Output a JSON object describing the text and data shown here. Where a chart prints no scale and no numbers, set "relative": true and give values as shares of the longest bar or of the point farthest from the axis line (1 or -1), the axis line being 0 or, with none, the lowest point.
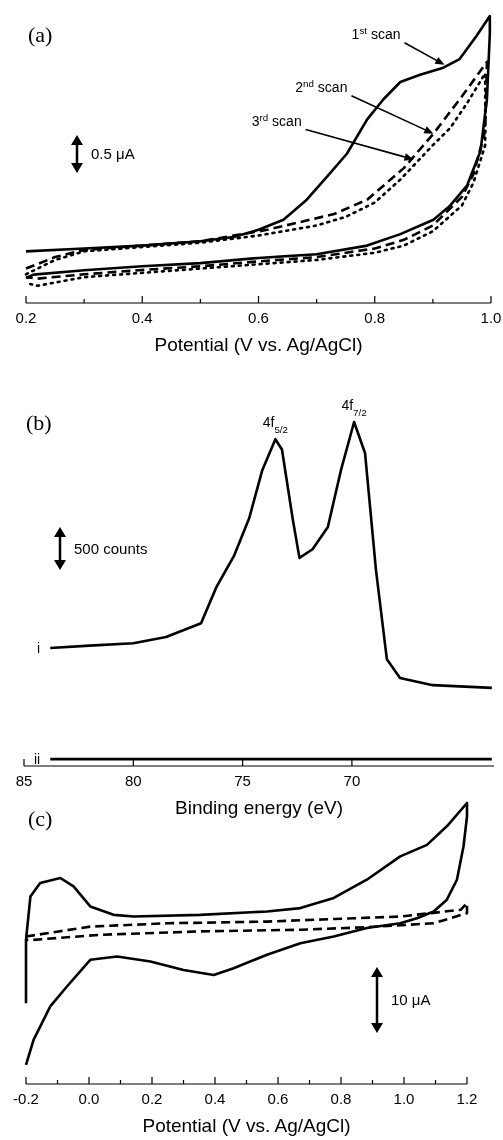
{
  "chart_data": [
    {
      "type": "line",
      "title": "(a)",
      "xlabel": "Potential (V vs. Ag/AgCl)",
      "relative": true,
      "xlim": [
        0.2,
        1.0
      ],
      "xticks": [
        0.2,
        {
          "value": 0.3,
          "label": null
        },
        0.4,
        {
          "value": 0.5,
          "label": null
        },
        0.6,
        {
          "value": 0.7,
          "label": null
        },
        0.8,
        {
          "value": 0.9,
          "label": null
        },
        {
          "value": 1,
          "label": "1.0"
        }
      ],
      "annotations": [
        "0.5 μA",
        {
          "text": "1$^{st}$ scan",
          "x": 0.92,
          "y": 0.83
        },
        {
          "text": "2$^{nd}$ scan",
          "x": 0.901,
          "y": 0.59
        },
        {
          "text": "3$^{rd}$ scan",
          "x": 0.867,
          "y": 0.5
        }
      ],
      "series": [
        {
          "color": "#000000",
          "line_style": "solid",
          "x": [
            0.2,
            0.3,
            0.4,
            0.5,
            0.557,
            0.6,
            0.643,
            0.683,
            0.718,
            0.752,
            0.787,
            0.815,
            0.844,
            0.878,
            0.918,
            0.946,
            0.975,
            0.998,
            0.998,
            0.993,
            0.982,
            0.959,
            0.93,
            0.901,
            0.844,
            0.787,
            0.7,
            0.6,
            0.5,
            0.4,
            0.3,
            0.213,
            0.2
          ],
          "values": [
            0.18,
            0.19,
            0.2,
            0.215,
            0.23,
            0.255,
            0.29,
            0.36,
            0.44,
            0.52,
            0.64,
            0.71,
            0.77,
            0.795,
            0.82,
            0.85,
            0.93,
            1,
            0.94,
            0.71,
            0.53,
            0.41,
            0.34,
            0.29,
            0.24,
            0.2,
            0.17,
            0.157,
            0.139,
            0.128,
            0.114,
            0.099,
            0.087
          ]
        },
        {
          "color": "#000000",
          "line_style": "dashed",
          "x": [
            0.2,
            0.25,
            0.3,
            0.4,
            0.5,
            0.615,
            0.73,
            0.787,
            0.85,
            0.901,
            0.95,
            0.993,
            0.99,
            0.97,
            0.95,
            0.9,
            0.85,
            0.8,
            0.7,
            0.6,
            0.5,
            0.4,
            0.3,
            0.22,
            0.2
          ],
          "values": [
            0.12,
            0.16,
            0.185,
            0.2,
            0.215,
            0.255,
            0.31,
            0.36,
            0.47,
            0.59,
            0.72,
            0.84,
            0.6,
            0.45,
            0.37,
            0.27,
            0.22,
            0.19,
            0.16,
            0.145,
            0.128,
            0.115,
            0.1,
            0.085,
            0.09
          ]
        },
        {
          "color": "#000000",
          "line_style": "dotted",
          "x": [
            0.2,
            0.25,
            0.3,
            0.4,
            0.5,
            0.6,
            0.7,
            0.75,
            0.8,
            0.844,
            0.9,
            0.93,
            0.96,
            0.99,
            0.99,
            0.97,
            0.95,
            0.9,
            0.85,
            0.8,
            0.7,
            0.6,
            0.5,
            0.4,
            0.3,
            0.22,
            0.2
          ],
          "values": [
            0.1,
            0.15,
            0.18,
            0.195,
            0.21,
            0.235,
            0.27,
            0.3,
            0.35,
            0.43,
            0.55,
            0.61,
            0.7,
            0.8,
            0.55,
            0.42,
            0.34,
            0.25,
            0.2,
            0.175,
            0.15,
            0.135,
            0.12,
            0.105,
            0.09,
            0.06,
            0.07
          ]
        }
      ]
    },
    {
      "type": "line",
      "title": "(b)",
      "xlabel": "Binding energy (eV)",
      "relative": true,
      "xlim": [
        85,
        63.5
      ],
      "xticks": [
        85,
        80,
        75,
        70
      ],
      "annotations": [
        "500 counts",
        {
          "text": "4f$_{5/2}$",
          "x": 73.5,
          "y": 0.95
        },
        {
          "text": "4f$_{7/2}$",
          "x": 69.9,
          "y": 1
        }
      ],
      "series": [
        {
          "name": "i",
          "color": "#000000",
          "line_style": "solid",
          "x": [
            83.8,
            82,
            80,
            78.5,
            76.9,
            76.2,
            75.4,
            74.7,
            74.1,
            73.5,
            73.2,
            72.7,
            72.4,
            71.8,
            71.1,
            70.5,
            69.9,
            69.4,
            68.9,
            68.4,
            67.8,
            66.3,
            63.6
          ],
          "values": [
            0.343,
            0.35,
            0.357,
            0.375,
            0.415,
            0.52,
            0.61,
            0.72,
            0.86,
            0.95,
            0.92,
            0.715,
            0.605,
            0.63,
            0.695,
            0.86,
            1,
            0.91,
            0.57,
            0.31,
            0.256,
            0.235,
            0.227
          ]
        },
        {
          "name": "ii",
          "color": "#000000",
          "line_style": "solid",
          "x": [
            83.8,
            80,
            75,
            70,
            66,
            63.6
          ],
          "values": [
            0.02,
            0.02,
            0.02,
            0.02,
            0.02,
            0.02
          ]
        }
      ]
    },
    {
      "type": "line",
      "title": "(c)",
      "xlabel": "Potential (V vs. Ag/AgCl)",
      "relative": true,
      "xlim": [
        -0.2,
        1.2
      ],
      "xticks": [
        -0.2,
        {
          "value": -0.1,
          "label": null
        },
        {
          "value": 0,
          "label": "0.0"
        },
        {
          "value": 0.1,
          "label": null
        },
        0.2,
        {
          "value": 0.3,
          "label": null
        },
        0.4,
        {
          "value": 0.5,
          "label": null
        },
        0.6,
        {
          "value": 0.7,
          "label": null
        },
        0.8,
        {
          "value": 0.9,
          "label": null
        },
        {
          "value": 1,
          "label": "1.0"
        },
        {
          "value": 1.1,
          "label": null
        },
        1.2
      ],
      "annotations": [
        "10 μA"
      ],
      "series": [
        {
          "color": "#000000",
          "line_style": "solid",
          "x": [
            -0.2,
            -0.2,
            -0.186,
            -0.155,
            -0.091,
            -0.049,
            0.004,
            0.078,
            0.142,
            0.353,
            0.565,
            0.671,
            0.777,
            0.882,
            0.988,
            1.073,
            1.136,
            1.2,
            1.2,
            1.189,
            1.168,
            1.136,
            1.094,
            1.041,
            0.988,
            0.882,
            0.777,
            0.671,
            0.565,
            0.459,
            0.396,
            0.3,
            0.195,
            0.089,
            0.004,
            -0.07,
            -0.123,
            -0.176,
            -0.2
          ],
          "values": [
            0.287,
            0.513,
            0.667,
            0.715,
            0.733,
            0.703,
            0.632,
            0.602,
            0.596,
            0.602,
            0.614,
            0.626,
            0.662,
            0.727,
            0.81,
            0.851,
            0.917,
            1,
            0.952,
            0.846,
            0.727,
            0.656,
            0.614,
            0.59,
            0.572,
            0.555,
            0.525,
            0.501,
            0.46,
            0.412,
            0.388,
            0.406,
            0.436,
            0.454,
            0.442,
            0.347,
            0.276,
            0.157,
            0.068
          ]
        },
        {
          "color": "#000000",
          "line_style": "dashed",
          "x": [
            -0.2,
            0.004,
            0.248,
            0.565,
            0.776,
            0.988,
            1.18,
            1.2,
            1.2,
            1.094,
            0.882,
            0.671,
            0.353,
            0.036,
            -0.176,
            -0.2
          ],
          "values": [
            0.525,
            0.56,
            0.572,
            0.578,
            0.587,
            0.596,
            0.62,
            0.644,
            0.608,
            0.572,
            0.558,
            0.549,
            0.543,
            0.531,
            0.513,
            0.513
          ]
        }
      ]
    }
  ]
}
